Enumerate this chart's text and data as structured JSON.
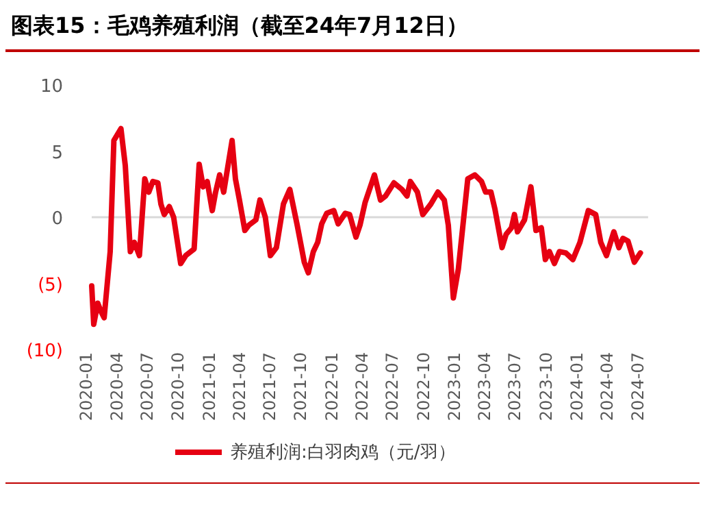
{
  "chart_data": {
    "type": "line",
    "title": "图表15：毛鸡养殖利润（截至24年7月12日）",
    "x": [
      "2020-01-01",
      "2020-01-07",
      "2020-01-19",
      "2020-01-28",
      "2020-02-07",
      "2020-02-25",
      "2020-03-07",
      "2020-03-28",
      "2020-04-10",
      "2020-04-25",
      "2020-05-07",
      "2020-05-22",
      "2020-06-07",
      "2020-06-19",
      "2020-07-01",
      "2020-07-16",
      "2020-07-25",
      "2020-08-04",
      "2020-08-19",
      "2020-09-01",
      "2020-09-22",
      "2020-10-07",
      "2020-11-01",
      "2020-11-16",
      "2020-11-28",
      "2020-12-10",
      "2020-12-25",
      "2021-01-04",
      "2021-01-16",
      "2021-01-28",
      "2021-02-22",
      "2021-03-04",
      "2021-03-16",
      "2021-04-01",
      "2021-04-13",
      "2021-05-04",
      "2021-05-16",
      "2021-06-01",
      "2021-06-16",
      "2021-07-04",
      "2021-07-25",
      "2021-08-13",
      "2021-09-04",
      "2021-09-25",
      "2021-10-07",
      "2021-10-22",
      "2021-11-04",
      "2021-11-16",
      "2021-12-01",
      "2021-12-22",
      "2022-01-04",
      "2022-01-25",
      "2022-02-07",
      "2022-02-26",
      "2022-03-10",
      "2022-03-25",
      "2022-04-22",
      "2022-05-10",
      "2022-05-25",
      "2022-06-19",
      "2022-07-13",
      "2022-07-28",
      "2022-08-07",
      "2022-08-28",
      "2022-09-13",
      "2022-10-07",
      "2022-10-28",
      "2022-11-16",
      "2022-11-28",
      "2022-12-13",
      "2022-12-28",
      "2023-01-25",
      "2023-02-15",
      "2023-03-07",
      "2023-03-19",
      "2023-04-04",
      "2023-04-16",
      "2023-05-07",
      "2023-05-19",
      "2023-06-04",
      "2023-06-13",
      "2023-06-22",
      "2023-07-13",
      "2023-08-01",
      "2023-08-16",
      "2023-09-01",
      "2023-09-13",
      "2023-09-25",
      "2023-10-10",
      "2023-10-25",
      "2023-11-13",
      "2023-12-04",
      "2023-12-25",
      "2024-01-19",
      "2024-02-10",
      "2024-02-25",
      "2024-03-13",
      "2024-04-04",
      "2024-04-19",
      "2024-05-01",
      "2024-05-16",
      "2024-06-04",
      "2024-06-22"
    ],
    "series": [
      {
        "name": "养殖利润:白羽肉鸡（元/羽）",
        "color": "#e60012",
        "values": [
          -5.2,
          -8.1,
          -6.5,
          -7.1,
          -7.6,
          -2.6,
          5.8,
          6.7,
          3.9,
          -2.6,
          -1.9,
          -2.9,
          2.9,
          1.9,
          2.7,
          2.6,
          1.0,
          0.2,
          0.8,
          0,
          -3.5,
          -2.9,
          -2.4,
          4.0,
          2.3,
          2.7,
          0.5,
          1.9,
          3.2,
          1.9,
          5.8,
          2.9,
          1.3,
          -1.0,
          -0.6,
          -0.2,
          1.3,
          0,
          -2.9,
          -2.3,
          1.0,
          2.1,
          -0.6,
          -3.4,
          -4.2,
          -2.6,
          -1.9,
          -0.5,
          0.3,
          0.5,
          -0.5,
          0.3,
          0.2,
          -1.5,
          -0.6,
          1.1,
          3.2,
          1.3,
          1.6,
          2.6,
          2.1,
          1.6,
          2.7,
          1.9,
          0.2,
          1.0,
          1.9,
          1.3,
          -0.6,
          -6.1,
          -3.9,
          2.9,
          3.2,
          2.7,
          1.9,
          1.9,
          0.6,
          -2.3,
          -1.3,
          -0.8,
          0.2,
          -1.1,
          -0.2,
          2.3,
          -1.0,
          -0.8,
          -3.2,
          -2.6,
          -3.5,
          -2.6,
          -2.7,
          -3.2,
          -1.9,
          0.5,
          0.2,
          -1.9,
          -2.9,
          -1.1,
          -2.3,
          -1.6,
          -1.8,
          -3.4,
          -2.7
        ]
      }
    ],
    "xlim": [
      "2020-01-01",
      "2024-07-15"
    ],
    "xticks": [
      "2020-01",
      "2020-04",
      "2020-07",
      "2020-10",
      "2021-01",
      "2021-04",
      "2021-07",
      "2021-10",
      "2022-01",
      "2022-04",
      "2022-07",
      "2022-10",
      "2023-01",
      "2023-04",
      "2023-07",
      "2023-10",
      "2024-01",
      "2024-04",
      "2024-07"
    ],
    "ylim": [
      -10,
      10
    ],
    "yticks": [
      {
        "value": -10,
        "label": "(10)"
      },
      {
        "value": -5,
        "label": "(5)"
      },
      0,
      5,
      10
    ],
    "ref_lines": [
      {
        "axis": "y",
        "value": 0,
        "color": "#d9d9d9"
      }
    ],
    "grid": false,
    "legend": "bottom",
    "marker": "none",
    "line_style": "solid"
  }
}
